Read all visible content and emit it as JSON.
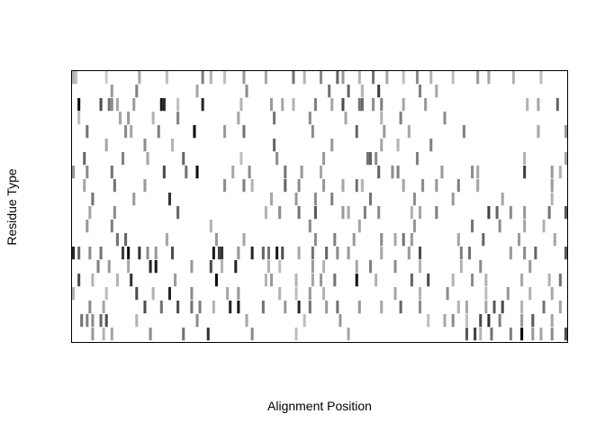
{
  "chart_data": {
    "type": "heatmap",
    "title": "",
    "xlabel": "Alignment Position",
    "ylabel": "Residue Type",
    "xlim": [
      0.5,
      180.5
    ],
    "ylim": [
      0.5,
      20.5
    ],
    "rows": 20,
    "columns": 180,
    "axes_shown": false,
    "grid": false,
    "legend": "none",
    "color_scale": [
      "#ffffff",
      "#000000"
    ],
    "cells": [
      [
        1,
        1,
        0.3
      ],
      [
        2,
        1,
        0.25
      ],
      [
        13,
        1,
        0.2
      ],
      [
        25,
        1,
        0.35
      ],
      [
        35,
        1,
        0.25
      ],
      [
        48,
        1,
        0.5
      ],
      [
        51,
        1,
        0.3
      ],
      [
        56,
        1,
        0.25
      ],
      [
        63,
        1,
        0.4
      ],
      [
        71,
        1,
        0.35
      ],
      [
        81,
        1,
        0.55
      ],
      [
        85,
        1,
        0.3
      ],
      [
        91,
        1,
        0.45
      ],
      [
        97,
        1,
        0.6
      ],
      [
        99,
        1,
        0.4
      ],
      [
        105,
        1,
        0.3
      ],
      [
        110,
        1,
        0.55
      ],
      [
        115,
        1,
        0.35
      ],
      [
        121,
        1,
        0.25
      ],
      [
        126,
        1,
        0.45
      ],
      [
        131,
        1,
        0.3
      ],
      [
        139,
        1,
        0.25
      ],
      [
        148,
        1,
        0.4
      ],
      [
        152,
        1,
        0.35
      ],
      [
        161,
        1,
        0.3
      ],
      [
        171,
        1,
        0.25
      ],
      [
        15,
        2,
        0.4
      ],
      [
        24,
        2,
        0.5
      ],
      [
        46,
        2,
        0.35
      ],
      [
        64,
        2,
        0.45
      ],
      [
        94,
        2,
        0.55
      ],
      [
        101,
        2,
        0.6
      ],
      [
        106,
        2,
        0.3
      ],
      [
        112,
        2,
        0.75
      ],
      [
        127,
        2,
        0.5
      ],
      [
        133,
        2,
        0.35
      ],
      [
        3,
        3,
        0.95
      ],
      [
        11,
        3,
        0.7
      ],
      [
        14,
        3,
        0.55
      ],
      [
        15,
        3,
        0.45
      ],
      [
        17,
        3,
        0.35
      ],
      [
        23,
        3,
        0.4
      ],
      [
        33,
        3,
        0.9
      ],
      [
        34,
        3,
        0.85
      ],
      [
        39,
        3,
        0.25
      ],
      [
        48,
        3,
        0.85
      ],
      [
        62,
        3,
        0.3
      ],
      [
        73,
        3,
        0.4
      ],
      [
        77,
        3,
        0.35
      ],
      [
        81,
        3,
        0.3
      ],
      [
        89,
        3,
        0.5
      ],
      [
        95,
        3,
        0.35
      ],
      [
        99,
        3,
        0.7
      ],
      [
        105,
        3,
        0.55
      ],
      [
        106,
        3,
        0.6
      ],
      [
        110,
        3,
        0.45
      ],
      [
        113,
        3,
        0.5
      ],
      [
        121,
        3,
        0.35
      ],
      [
        129,
        3,
        0.4
      ],
      [
        166,
        3,
        0.3
      ],
      [
        170,
        3,
        0.35
      ],
      [
        177,
        3,
        0.6
      ],
      [
        3,
        4,
        0.25
      ],
      [
        18,
        4,
        0.35
      ],
      [
        21,
        4,
        0.4
      ],
      [
        30,
        4,
        0.3
      ],
      [
        39,
        4,
        0.5
      ],
      [
        61,
        4,
        0.35
      ],
      [
        74,
        4,
        0.55
      ],
      [
        87,
        4,
        0.45
      ],
      [
        100,
        4,
        0.35
      ],
      [
        113,
        4,
        0.3
      ],
      [
        120,
        4,
        0.5
      ],
      [
        136,
        4,
        0.45
      ],
      [
        6,
        5,
        0.55
      ],
      [
        20,
        5,
        0.45
      ],
      [
        22,
        5,
        0.35
      ],
      [
        32,
        5,
        0.5
      ],
      [
        45,
        5,
        0.95
      ],
      [
        56,
        5,
        0.4
      ],
      [
        63,
        5,
        0.55
      ],
      [
        88,
        5,
        0.45
      ],
      [
        104,
        5,
        0.6
      ],
      [
        114,
        5,
        0.4
      ],
      [
        123,
        5,
        0.35
      ],
      [
        143,
        5,
        0.5
      ],
      [
        170,
        5,
        0.35
      ],
      [
        180,
        5,
        0.4
      ],
      [
        13,
        6,
        0.35
      ],
      [
        27,
        6,
        0.45
      ],
      [
        37,
        6,
        0.3
      ],
      [
        74,
        6,
        0.6
      ],
      [
        95,
        6,
        0.4
      ],
      [
        113,
        6,
        0.35
      ],
      [
        119,
        6,
        0.3
      ],
      [
        131,
        6,
        0.5
      ],
      [
        5,
        7,
        0.6
      ],
      [
        19,
        7,
        0.5
      ],
      [
        28,
        7,
        0.35
      ],
      [
        41,
        7,
        0.6
      ],
      [
        62,
        7,
        0.25
      ],
      [
        75,
        7,
        0.45
      ],
      [
        92,
        7,
        0.4
      ],
      [
        108,
        7,
        0.55
      ],
      [
        109,
        7,
        0.6
      ],
      [
        111,
        7,
        0.45
      ],
      [
        126,
        7,
        0.5
      ],
      [
        165,
        7,
        0.3
      ],
      [
        180,
        7,
        0.35
      ],
      [
        1,
        8,
        0.4
      ],
      [
        6,
        8,
        0.45
      ],
      [
        15,
        8,
        0.55
      ],
      [
        34,
        8,
        0.7
      ],
      [
        42,
        8,
        0.55
      ],
      [
        46,
        8,
        0.95
      ],
      [
        59,
        8,
        0.35
      ],
      [
        65,
        8,
        0.45
      ],
      [
        78,
        8,
        0.55
      ],
      [
        84,
        8,
        0.4
      ],
      [
        91,
        8,
        0.35
      ],
      [
        112,
        8,
        0.6
      ],
      [
        117,
        8,
        0.45
      ],
      [
        119,
        8,
        0.5
      ],
      [
        135,
        8,
        0.4
      ],
      [
        146,
        8,
        0.45
      ],
      [
        148,
        8,
        0.35
      ],
      [
        165,
        8,
        0.75
      ],
      [
        175,
        8,
        0.4
      ],
      [
        178,
        8,
        0.3
      ],
      [
        5,
        9,
        0.35
      ],
      [
        16,
        9,
        0.55
      ],
      [
        27,
        9,
        0.4
      ],
      [
        56,
        9,
        0.45
      ],
      [
        63,
        9,
        0.5
      ],
      [
        66,
        9,
        0.3
      ],
      [
        78,
        9,
        0.6
      ],
      [
        83,
        9,
        0.45
      ],
      [
        92,
        9,
        0.4
      ],
      [
        99,
        9,
        0.35
      ],
      [
        104,
        9,
        0.55
      ],
      [
        106,
        9,
        0.3
      ],
      [
        121,
        9,
        0.35
      ],
      [
        128,
        9,
        0.45
      ],
      [
        133,
        9,
        0.4
      ],
      [
        141,
        9,
        0.5
      ],
      [
        148,
        9,
        0.35
      ],
      [
        175,
        9,
        0.4
      ],
      [
        8,
        10,
        0.55
      ],
      [
        23,
        10,
        0.4
      ],
      [
        36,
        10,
        0.8
      ],
      [
        73,
        10,
        0.35
      ],
      [
        82,
        10,
        0.4
      ],
      [
        89,
        10,
        0.45
      ],
      [
        95,
        10,
        0.5
      ],
      [
        109,
        10,
        0.55
      ],
      [
        125,
        10,
        0.45
      ],
      [
        139,
        10,
        0.4
      ],
      [
        157,
        10,
        0.35
      ],
      [
        175,
        10,
        0.3
      ],
      [
        7,
        11,
        0.35
      ],
      [
        16,
        11,
        0.45
      ],
      [
        39,
        11,
        0.6
      ],
      [
        71,
        11,
        0.3
      ],
      [
        76,
        11,
        0.45
      ],
      [
        83,
        11,
        0.55
      ],
      [
        89,
        11,
        0.65
      ],
      [
        99,
        11,
        0.4
      ],
      [
        101,
        11,
        0.35
      ],
      [
        107,
        11,
        0.5
      ],
      [
        112,
        11,
        0.45
      ],
      [
        124,
        11,
        0.3
      ],
      [
        127,
        11,
        0.35
      ],
      [
        133,
        11,
        0.5
      ],
      [
        152,
        11,
        0.75
      ],
      [
        155,
        11,
        0.6
      ],
      [
        160,
        11,
        0.45
      ],
      [
        165,
        11,
        0.4
      ],
      [
        174,
        11,
        0.55
      ],
      [
        180,
        11,
        0.65
      ],
      [
        6,
        12,
        0.4
      ],
      [
        15,
        12,
        0.5
      ],
      [
        51,
        12,
        0.3
      ],
      [
        87,
        12,
        0.45
      ],
      [
        105,
        12,
        0.35
      ],
      [
        125,
        12,
        0.4
      ],
      [
        146,
        12,
        0.55
      ],
      [
        156,
        12,
        0.45
      ],
      [
        165,
        12,
        0.35
      ],
      [
        172,
        12,
        0.3
      ],
      [
        17,
        13,
        0.55
      ],
      [
        20,
        13,
        0.6
      ],
      [
        35,
        13,
        0.35
      ],
      [
        53,
        13,
        0.4
      ],
      [
        63,
        13,
        0.35
      ],
      [
        89,
        13,
        0.45
      ],
      [
        96,
        13,
        0.5
      ],
      [
        103,
        13,
        0.4
      ],
      [
        113,
        13,
        0.45
      ],
      [
        118,
        13,
        0.35
      ],
      [
        121,
        13,
        0.55
      ],
      [
        124,
        13,
        0.4
      ],
      [
        141,
        13,
        0.35
      ],
      [
        150,
        13,
        0.6
      ],
      [
        163,
        13,
        0.4
      ],
      [
        176,
        13,
        0.35
      ],
      [
        1,
        14,
        0.85
      ],
      [
        3,
        14,
        0.6
      ],
      [
        7,
        14,
        0.45
      ],
      [
        11,
        14,
        0.55
      ],
      [
        19,
        14,
        0.75
      ],
      [
        21,
        14,
        0.95
      ],
      [
        25,
        14,
        0.8
      ],
      [
        28,
        14,
        0.45
      ],
      [
        31,
        14,
        0.4
      ],
      [
        37,
        14,
        0.7
      ],
      [
        52,
        14,
        0.9
      ],
      [
        54,
        14,
        0.75
      ],
      [
        55,
        14,
        0.8
      ],
      [
        61,
        14,
        0.4
      ],
      [
        66,
        14,
        0.85
      ],
      [
        70,
        14,
        0.6
      ],
      [
        72,
        14,
        0.55
      ],
      [
        75,
        14,
        0.9
      ],
      [
        77,
        14,
        0.7
      ],
      [
        83,
        14,
        0.35
      ],
      [
        88,
        14,
        0.55
      ],
      [
        93,
        14,
        0.6
      ],
      [
        97,
        14,
        0.45
      ],
      [
        101,
        14,
        0.4
      ],
      [
        113,
        14,
        0.35
      ],
      [
        123,
        14,
        0.4
      ],
      [
        127,
        14,
        0.7
      ],
      [
        142,
        14,
        0.5
      ],
      [
        145,
        14,
        0.55
      ],
      [
        160,
        14,
        0.4
      ],
      [
        165,
        14,
        0.45
      ],
      [
        169,
        14,
        0.6
      ],
      [
        180,
        14,
        0.65
      ],
      [
        10,
        15,
        0.5
      ],
      [
        14,
        15,
        0.4
      ],
      [
        21,
        15,
        0.35
      ],
      [
        29,
        15,
        0.85
      ],
      [
        31,
        15,
        0.9
      ],
      [
        44,
        15,
        0.4
      ],
      [
        51,
        15,
        0.7
      ],
      [
        55,
        15,
        0.3
      ],
      [
        60,
        15,
        0.85
      ],
      [
        72,
        15,
        0.3
      ],
      [
        76,
        15,
        0.25
      ],
      [
        88,
        15,
        0.4
      ],
      [
        92,
        15,
        0.3
      ],
      [
        104,
        15,
        0.35
      ],
      [
        109,
        15,
        0.5
      ],
      [
        118,
        15,
        0.45
      ],
      [
        127,
        15,
        0.3
      ],
      [
        142,
        15,
        0.3
      ],
      [
        149,
        15,
        0.45
      ],
      [
        167,
        15,
        0.4
      ],
      [
        3,
        16,
        0.7
      ],
      [
        8,
        16,
        0.3
      ],
      [
        17,
        16,
        0.3
      ],
      [
        22,
        16,
        0.8
      ],
      [
        38,
        16,
        0.4
      ],
      [
        53,
        16,
        0.95
      ],
      [
        71,
        16,
        0.3
      ],
      [
        73,
        16,
        0.4
      ],
      [
        82,
        16,
        0.3
      ],
      [
        88,
        16,
        0.35
      ],
      [
        91,
        16,
        0.4
      ],
      [
        96,
        16,
        0.55
      ],
      [
        104,
        16,
        0.95
      ],
      [
        111,
        16,
        0.3
      ],
      [
        124,
        16,
        0.6
      ],
      [
        130,
        16,
        0.7
      ],
      [
        139,
        16,
        0.3
      ],
      [
        146,
        16,
        0.45
      ],
      [
        151,
        16,
        0.3
      ],
      [
        164,
        16,
        0.35
      ],
      [
        174,
        16,
        0.3
      ],
      [
        178,
        16,
        0.55
      ],
      [
        1,
        17,
        0.3
      ],
      [
        13,
        17,
        0.25
      ],
      [
        24,
        17,
        0.7
      ],
      [
        30,
        17,
        0.3
      ],
      [
        36,
        17,
        0.85
      ],
      [
        44,
        17,
        0.45
      ],
      [
        57,
        17,
        0.35
      ],
      [
        61,
        17,
        0.4
      ],
      [
        76,
        17,
        0.3
      ],
      [
        82,
        17,
        0.25
      ],
      [
        87,
        17,
        0.4
      ],
      [
        92,
        17,
        0.3
      ],
      [
        118,
        17,
        0.35
      ],
      [
        127,
        17,
        0.3
      ],
      [
        137,
        17,
        0.45
      ],
      [
        151,
        17,
        0.25
      ],
      [
        159,
        17,
        0.4
      ],
      [
        167,
        17,
        0.3
      ],
      [
        175,
        17,
        0.35
      ],
      [
        7,
        18,
        0.45
      ],
      [
        12,
        18,
        0.35
      ],
      [
        27,
        18,
        0.7
      ],
      [
        33,
        18,
        0.55
      ],
      [
        39,
        18,
        0.7
      ],
      [
        44,
        18,
        0.55
      ],
      [
        47,
        18,
        0.5
      ],
      [
        52,
        18,
        0.3
      ],
      [
        58,
        18,
        0.85
      ],
      [
        61,
        18,
        0.9
      ],
      [
        70,
        18,
        0.55
      ],
      [
        78,
        18,
        0.4
      ],
      [
        83,
        18,
        0.85
      ],
      [
        87,
        18,
        0.55
      ],
      [
        93,
        18,
        0.4
      ],
      [
        97,
        18,
        0.55
      ],
      [
        105,
        18,
        0.4
      ],
      [
        113,
        18,
        0.35
      ],
      [
        120,
        18,
        0.6
      ],
      [
        127,
        18,
        0.45
      ],
      [
        141,
        18,
        0.3
      ],
      [
        144,
        18,
        0.35
      ],
      [
        151,
        18,
        0.35
      ],
      [
        154,
        18,
        0.65
      ],
      [
        157,
        18,
        0.7
      ],
      [
        164,
        18,
        0.3
      ],
      [
        172,
        18,
        0.55
      ],
      [
        178,
        18,
        0.35
      ],
      [
        4,
        19,
        0.55
      ],
      [
        6,
        19,
        0.5
      ],
      [
        8,
        19,
        0.45
      ],
      [
        11,
        19,
        0.6
      ],
      [
        13,
        19,
        0.7
      ],
      [
        24,
        19,
        0.3
      ],
      [
        46,
        19,
        0.45
      ],
      [
        64,
        19,
        0.35
      ],
      [
        85,
        19,
        0.25
      ],
      [
        98,
        19,
        0.4
      ],
      [
        130,
        19,
        0.25
      ],
      [
        136,
        19,
        0.35
      ],
      [
        139,
        19,
        0.45
      ],
      [
        144,
        19,
        0.25
      ],
      [
        149,
        19,
        0.7
      ],
      [
        152,
        19,
        0.8
      ],
      [
        156,
        19,
        0.5
      ],
      [
        164,
        19,
        0.4
      ],
      [
        168,
        19,
        0.65
      ],
      [
        175,
        19,
        0.35
      ],
      [
        8,
        20,
        0.4
      ],
      [
        12,
        20,
        0.3
      ],
      [
        15,
        20,
        0.35
      ],
      [
        29,
        20,
        0.45
      ],
      [
        41,
        20,
        0.55
      ],
      [
        50,
        20,
        0.8
      ],
      [
        66,
        20,
        0.45
      ],
      [
        82,
        20,
        0.25
      ],
      [
        101,
        20,
        0.35
      ],
      [
        144,
        20,
        0.65
      ],
      [
        147,
        20,
        0.75
      ],
      [
        149,
        20,
        0.3
      ],
      [
        153,
        20,
        0.55
      ],
      [
        160,
        20,
        0.5
      ],
      [
        164,
        20,
        1.0
      ],
      [
        168,
        20,
        0.4
      ],
      [
        171,
        20,
        0.35
      ],
      [
        175,
        20,
        0.45
      ],
      [
        180,
        20,
        0.7
      ]
    ]
  }
}
